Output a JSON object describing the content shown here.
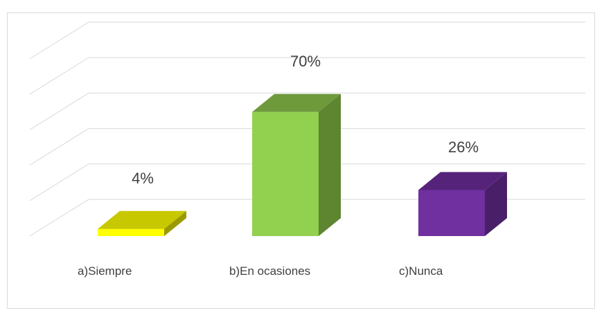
{
  "chart_data": {
    "type": "bar",
    "style": "3d-column",
    "categories": [
      "a)Siempre",
      "b)En ocasiones",
      "c)Nunca"
    ],
    "values": [
      4,
      70,
      26
    ],
    "data_labels": [
      "4%",
      "70%",
      "26%"
    ],
    "unit": "%",
    "ylim": [
      0,
      100
    ],
    "grid": true,
    "legend": "none",
    "colors": {
      "a)Siempre": {
        "front": "#ffff00",
        "top": "#c8c800",
        "side": "#9a9a00"
      },
      "b)En ocasiones": {
        "front": "#92d050",
        "top": "#6f9a3c",
        "side": "#5e8530"
      },
      "c)Nunca": {
        "front": "#7030a0",
        "top": "#55247a",
        "side": "#4a1f6a"
      }
    },
    "gridline_color": "#d9d9d9",
    "text_color": "#404040"
  }
}
